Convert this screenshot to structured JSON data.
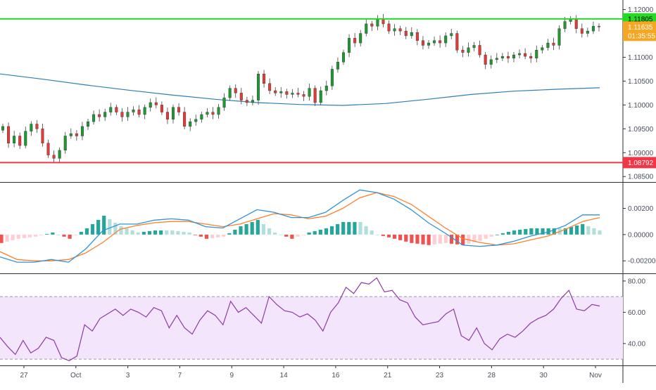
{
  "chart_data": [
    {
      "panel": "price",
      "type": "candlestick",
      "ylim": [
        1.084,
        1.122
      ],
      "y_ticks": [
        "1.12000",
        "1.11500",
        "1.11000",
        "1.10500",
        "1.10000",
        "1.09500",
        "1.09000",
        "1.08500"
      ],
      "y_tick_values": [
        1.12,
        1.115,
        1.11,
        1.105,
        1.1,
        1.095,
        1.09,
        1.085
      ],
      "resistance": {
        "value": 1.11805,
        "label": "1.11805",
        "color": "#22dd22"
      },
      "support": {
        "value": 1.08792,
        "label": "1.08792",
        "color": "#f23645"
      },
      "last_price_label": "1.11635",
      "last_price_value": 1.11635,
      "countdown_label": "01:35:55",
      "ma_color": "#2e7fb5",
      "ma": [
        1.1065,
        1.1054,
        1.1042,
        1.1031,
        1.1021,
        1.1012,
        1.1005,
        1.1001,
        1.0999,
        1.1003,
        1.1012,
        1.1022,
        1.1029,
        1.1033,
        1.1036
      ],
      "closes": [
        1.0955,
        1.092,
        1.0935,
        1.0915,
        1.0945,
        1.096,
        1.095,
        1.092,
        1.0895,
        1.0888,
        1.0905,
        1.0935,
        1.094,
        1.0935,
        1.0955,
        1.0965,
        1.098,
        1.0975,
        1.0985,
        1.0995,
        1.0985,
        1.0975,
        1.0985,
        1.099,
        1.098,
        1.0995,
        1.1005,
        1.1,
        1.0985,
        1.097,
        1.0995,
        1.0985,
        1.0955,
        1.0965,
        1.097,
        1.098,
        1.0985,
        1.098,
        1.0995,
        1.1015,
        1.1035,
        1.1025,
        1.101,
        1.1005,
        1.101,
        1.1065,
        1.1045,
        1.103,
        1.1025,
        1.1028,
        1.1022,
        1.1025,
        1.1022,
        1.1018,
        1.1035,
        1.1005,
        1.103,
        1.104,
        1.1075,
        1.109,
        1.111,
        1.114,
        1.113,
        1.115,
        1.117,
        1.1165,
        1.118,
        1.117,
        1.1155,
        1.116,
        1.1155,
        1.1145,
        1.1152,
        1.1135,
        1.1125,
        1.113,
        1.1135,
        1.113,
        1.1145,
        1.115,
        1.1115,
        1.111,
        1.112,
        1.1125,
        1.1105,
        1.1085,
        1.1095,
        1.1098,
        1.1102,
        1.1098,
        1.1105,
        1.1108,
        1.1102,
        1.1098,
        1.1115,
        1.112,
        1.113,
        1.1125,
        1.116,
        1.1175,
        1.118,
        1.116,
        1.115,
        1.1155,
        1.1165,
        1.1164
      ]
    },
    {
      "panel": "macd",
      "type": "line+bar",
      "ylim": [
        -0.0029,
        0.0039
      ],
      "y_ticks": [
        "0.00200",
        "0.00000",
        "-0.00200"
      ],
      "y_tick_values": [
        0.002,
        0.0,
        -0.002
      ],
      "macd_color": "#2e93d6",
      "signal_color": "#ff7f2a",
      "macd": [
        -0.0017,
        -0.0021,
        -0.0021,
        -0.0019,
        -0.0021,
        -0.0011,
        0.0003,
        0.0008,
        0.0008,
        0.0011,
        0.0012,
        0.0011,
        0.0006,
        0.0005,
        0.0012,
        0.0019,
        0.0017,
        0.0013,
        0.0013,
        0.0017,
        0.0026,
        0.0034,
        0.0032,
        0.0027,
        0.0019,
        0.0009,
        0.0001,
        -0.0008,
        -0.0009,
        -0.0008,
        -0.0005,
        -0.0001,
        0.0002,
        0.0007,
        0.0015,
        0.0015
      ],
      "signal": [
        -0.0013,
        -0.0019,
        -0.002,
        -0.002,
        -0.0019,
        -0.0014,
        -0.0006,
        0.0004,
        0.0007,
        0.0009,
        0.001,
        0.001,
        0.0008,
        0.0006,
        0.0008,
        0.0012,
        0.0016,
        0.0015,
        0.0012,
        0.0014,
        0.002,
        0.0028,
        0.0032,
        0.0029,
        0.0023,
        0.0014,
        0.0005,
        -0.0003,
        -0.0006,
        -0.0008,
        -0.0007,
        -0.0004,
        -0.0001,
        0.0004,
        0.001,
        0.0013
      ],
      "histogram_up": "#26a69a",
      "histogram_up_light": "#b2dfdb",
      "histogram_down": "#ef5350",
      "histogram_down_light": "#ffcdd2"
    },
    {
      "panel": "rsi",
      "type": "line",
      "ylim": [
        26,
        84
      ],
      "y_ticks": [
        "80.00",
        "60.00",
        "40.00"
      ],
      "y_tick_values": [
        80,
        60,
        40
      ],
      "upper_band": 70,
      "lower_band": 30,
      "band_fill": "#f3e5fc",
      "line_color": "#8e3aa6",
      "rsi": [
        44,
        38,
        33,
        42,
        34,
        37,
        44,
        42,
        31,
        29,
        32,
        52,
        48,
        56,
        59,
        62,
        58,
        62,
        60,
        57,
        63,
        61,
        50,
        58,
        50,
        46,
        55,
        61,
        58,
        52,
        67,
        60,
        63,
        58,
        53,
        70,
        65,
        61,
        60,
        57,
        59,
        55,
        48,
        60,
        66,
        76,
        72,
        79,
        78,
        82,
        73,
        74,
        68,
        66,
        57,
        52,
        53,
        54,
        59,
        62,
        45,
        42,
        50,
        40,
        36,
        43,
        46,
        44,
        48,
        53,
        56,
        58,
        62,
        69,
        74,
        62,
        61,
        65,
        64
      ]
    }
  ],
  "x_axis": {
    "labels": [
      "27",
      "Oct",
      "3",
      "7",
      "9",
      "14",
      "16",
      "21",
      "23",
      "28",
      "30",
      "Nov"
    ]
  }
}
